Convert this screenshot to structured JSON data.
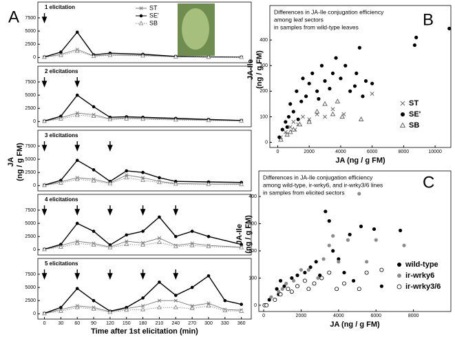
{
  "chart_data": [
    {
      "type": "line",
      "panel": "A",
      "annotation": "1 elicitation",
      "y_label": [
        "JA",
        "(ng / g FM)"
      ],
      "xlim": [
        -12,
        378
      ],
      "ylim": [
        -1000,
        10500
      ],
      "yticks": [
        0,
        2500,
        5000,
        7500
      ],
      "x": [
        0,
        30,
        60,
        90,
        120,
        180,
        240,
        300,
        360
      ],
      "elicitations": [
        0
      ],
      "series": [
        {
          "name": "ST",
          "color": "#777777",
          "marker": "x",
          "linestyle": "solid",
          "values": [
            50,
            600,
            1500,
            300,
            500,
            400,
            150,
            80,
            50
          ]
        },
        {
          "name": "SE'",
          "color": "#000000",
          "marker": "circle",
          "linestyle": "solid",
          "values": [
            100,
            1000,
            4800,
            500,
            800,
            600,
            200,
            100,
            50
          ]
        },
        {
          "name": "SB",
          "color": "#888888",
          "marker": "triangle",
          "linestyle": "dotted",
          "values": [
            50,
            400,
            1200,
            200,
            400,
            300,
            100,
            50,
            30
          ]
        }
      ]
    },
    {
      "type": "line",
      "annotation": "2 elicitations",
      "xlim": [
        -12,
        378
      ],
      "ylim": [
        -1000,
        10500
      ],
      "yticks": [
        0,
        2500,
        5000,
        7500
      ],
      "x": [
        0,
        30,
        60,
        90,
        120,
        150,
        180,
        240,
        300,
        360
      ],
      "elicitations": [
        0,
        60
      ],
      "series": [
        {
          "color": "#777777",
          "marker": "x",
          "linestyle": "solid",
          "values": [
            50,
            700,
            1600,
            1300,
            500,
            700,
            600,
            400,
            300,
            150
          ]
        },
        {
          "color": "#000000",
          "marker": "circle",
          "linestyle": "solid",
          "values": [
            100,
            1000,
            5000,
            2800,
            800,
            900,
            800,
            600,
            400,
            200
          ]
        },
        {
          "color": "#888888",
          "marker": "triangle",
          "linestyle": "dotted",
          "values": [
            50,
            500,
            1200,
            1000,
            400,
            500,
            450,
            300,
            200,
            100
          ]
        }
      ]
    },
    {
      "type": "line",
      "annotation": "3 elicitations",
      "xlim": [
        -12,
        378
      ],
      "ylim": [
        -1000,
        10500
      ],
      "yticks": [
        0,
        2500,
        5000,
        7500
      ],
      "x": [
        0,
        30,
        60,
        90,
        120,
        150,
        180,
        210,
        240,
        300,
        360
      ],
      "elicitations": [
        0,
        60,
        120
      ],
      "series": [
        {
          "color": "#777777",
          "marker": "x",
          "linestyle": "solid",
          "values": [
            50,
            700,
            1500,
            1200,
            500,
            2000,
            1500,
            800,
            400,
            300,
            300
          ]
        },
        {
          "color": "#000000",
          "marker": "circle",
          "linestyle": "solid",
          "values": [
            100,
            1000,
            4800,
            3000,
            800,
            2800,
            2500,
            1500,
            800,
            700,
            600
          ]
        },
        {
          "color": "#888888",
          "marker": "triangle",
          "linestyle": "dotted",
          "values": [
            50,
            500,
            1200,
            900,
            400,
            1500,
            1000,
            600,
            300,
            250,
            200
          ]
        }
      ]
    },
    {
      "type": "line",
      "annotation": "4 elicitations",
      "xlim": [
        -12,
        378
      ],
      "ylim": [
        -1000,
        10500
      ],
      "yticks": [
        0,
        2500,
        5000,
        7500
      ],
      "x": [
        0,
        30,
        60,
        90,
        120,
        150,
        180,
        210,
        240,
        270,
        300,
        360
      ],
      "elicitations": [
        0,
        60,
        120,
        180,
        240
      ],
      "series": [
        {
          "color": "#777777",
          "marker": "x",
          "linestyle": "solid",
          "values": [
            50,
            800,
            1600,
            1200,
            500,
            1600,
            1300,
            2200,
            800,
            1200,
            800,
            500
          ]
        },
        {
          "color": "#000000",
          "marker": "circle",
          "linestyle": "solid",
          "values": [
            100,
            1000,
            5000,
            3500,
            900,
            2800,
            3500,
            6200,
            2500,
            3500,
            2500,
            1000
          ]
        },
        {
          "color": "#888888",
          "marker": "triangle",
          "linestyle": "dotted",
          "values": [
            50,
            500,
            1200,
            900,
            400,
            1000,
            900,
            1400,
            600,
            800,
            600,
            400
          ]
        }
      ]
    },
    {
      "type": "line",
      "annotation": "5 elicitations",
      "x_label": "Time after 1st elicitation (min)",
      "xlim": [
        -12,
        378
      ],
      "xticks": [
        0,
        30,
        60,
        90,
        120,
        150,
        180,
        210,
        240,
        270,
        300,
        330,
        360
      ],
      "ylim": [
        -1000,
        10500
      ],
      "yticks": [
        0,
        2500,
        5000,
        7500
      ],
      "x": [
        0,
        30,
        60,
        90,
        120,
        150,
        180,
        210,
        240,
        270,
        300,
        330,
        360
      ],
      "elicitations": [
        0,
        60,
        120,
        180,
        240
      ],
      "series": [
        {
          "color": "#777777",
          "marker": "x",
          "linestyle": "solid",
          "values": [
            50,
            800,
            1500,
            1200,
            400,
            1000,
            1500,
            2500,
            2500,
            1500,
            2000,
            800,
            700
          ]
        },
        {
          "color": "#000000",
          "marker": "circle",
          "linestyle": "solid",
          "values": [
            100,
            1200,
            4800,
            2500,
            500,
            1200,
            3000,
            6000,
            3500,
            5000,
            7200,
            2500,
            1800
          ]
        },
        {
          "color": "#888888",
          "marker": "triangle",
          "linestyle": "dotted",
          "values": [
            50,
            500,
            1200,
            900,
            300,
            700,
            800,
            1200,
            1200,
            1000,
            1500,
            600,
            500
          ]
        }
      ]
    },
    {
      "type": "scatter",
      "panel": "B",
      "title": [
        "Differences in JA-Ile conjugation efficiency",
        "among leaf sectors",
        "in samples from wild-type leaves"
      ],
      "x_label": "JA (ng / g FM)",
      "y_label": [
        "JA-Ile",
        "(ng / g FM)"
      ],
      "xlim": [
        -500,
        11000
      ],
      "xticks": [
        0,
        2000,
        4000,
        6000,
        8000,
        10000
      ],
      "ylim": [
        -20,
        535
      ],
      "yticks": [
        0,
        100,
        200,
        300,
        400
      ],
      "series": [
        {
          "name": "ST",
          "color": "#666666",
          "marker": "x",
          "x": [
            200,
            500,
            800,
            1000,
            1300,
            1600,
            2000,
            2500,
            3000,
            3500,
            4200,
            6000,
            600,
            1100
          ],
          "values": [
            20,
            40,
            60,
            80,
            70,
            100,
            90,
            110,
            100,
            130,
            110,
            190,
            30,
            50
          ]
        },
        {
          "name": "SE'",
          "color": "#000000",
          "marker": "circle",
          "x": [
            100,
            300,
            500,
            700,
            800,
            1000,
            1200,
            1500,
            1600,
            1800,
            2000,
            2200,
            2500,
            2800,
            3000,
            3300,
            3500,
            3700,
            4000,
            4300,
            4600,
            5000,
            5200,
            5400,
            5600,
            6000,
            8700,
            8800,
            10900,
            600,
            1300,
            2600,
            4900
          ],
          "values": [
            20,
            50,
            80,
            100,
            150,
            120,
            200,
            160,
            250,
            180,
            230,
            270,
            200,
            300,
            240,
            210,
            270,
            330,
            250,
            300,
            200,
            270,
            370,
            180,
            240,
            230,
            380,
            410,
            445,
            60,
            90,
            170,
            220
          ]
        },
        {
          "name": "SB",
          "color": "#555555",
          "marker": "triangle",
          "x": [
            200,
            600,
            1000,
            1400,
            2000,
            2500,
            3000,
            3500,
            3800,
            4100,
            5300,
            800
          ],
          "values": [
            10,
            30,
            50,
            70,
            80,
            120,
            150,
            110,
            160,
            100,
            90,
            40
          ]
        }
      ]
    },
    {
      "type": "scatter",
      "panel": "C",
      "title": [
        "Differences in JA-Ile conjugation efficiency",
        "among wild-type, ir-wrky6, and ir-wrky3/6 lines",
        "in samples from elicited sectors"
      ],
      "x_label": "JA (ng / g FM)",
      "y_label": [
        "JA-Ile",
        "(ng / g FM)"
      ],
      "xlim": [
        -260,
        10000
      ],
      "xticks": [
        0,
        2000,
        4000,
        6000,
        8000
      ],
      "ylim": [
        -23,
        494
      ],
      "yticks": [
        0,
        100,
        200,
        300,
        400
      ],
      "series": [
        {
          "name": "wild-type",
          "color": "#000000",
          "marker": "circle",
          "x": [
            300,
            700,
            900,
            1100,
            1500,
            1800,
            2200,
            2500,
            3000,
            3300,
            3500,
            3700,
            4000,
            4300,
            4600,
            5200,
            5900,
            7300,
            800,
            2800,
            4800,
            6300
          ],
          "values": [
            20,
            60,
            90,
            70,
            100,
            110,
            120,
            140,
            110,
            345,
            310,
            200,
            170,
            120,
            260,
            290,
            280,
            275,
            40,
            160,
            90,
            70
          ]
        },
        {
          "name": "ir-wrky6",
          "color": "#8c8c8c",
          "marker": "circle",
          "x": [
            400,
            800,
            1200,
            1600,
            2000,
            2400,
            2900,
            3200,
            3500,
            3700,
            4000,
            4500,
            5100,
            5500,
            6000,
            7500,
            1000
          ],
          "values": [
            30,
            50,
            80,
            90,
            130,
            130,
            100,
            170,
            220,
            255,
            160,
            240,
            410,
            160,
            240,
            220,
            60
          ]
        },
        {
          "name": "ir-wrky3/6",
          "color": "#000000",
          "marker": "open-circle",
          "x": [
            50,
            150,
            600,
            900,
            1300,
            1800,
            2200,
            2700,
            3100,
            3500,
            3900,
            4300,
            5100,
            5500,
            6300,
            1500,
            2400
          ],
          "values": [
            0,
            0,
            20,
            40,
            60,
            70,
            90,
            80,
            100,
            120,
            60,
            80,
            60,
            120,
            130,
            50,
            60
          ]
        }
      ]
    }
  ]
}
